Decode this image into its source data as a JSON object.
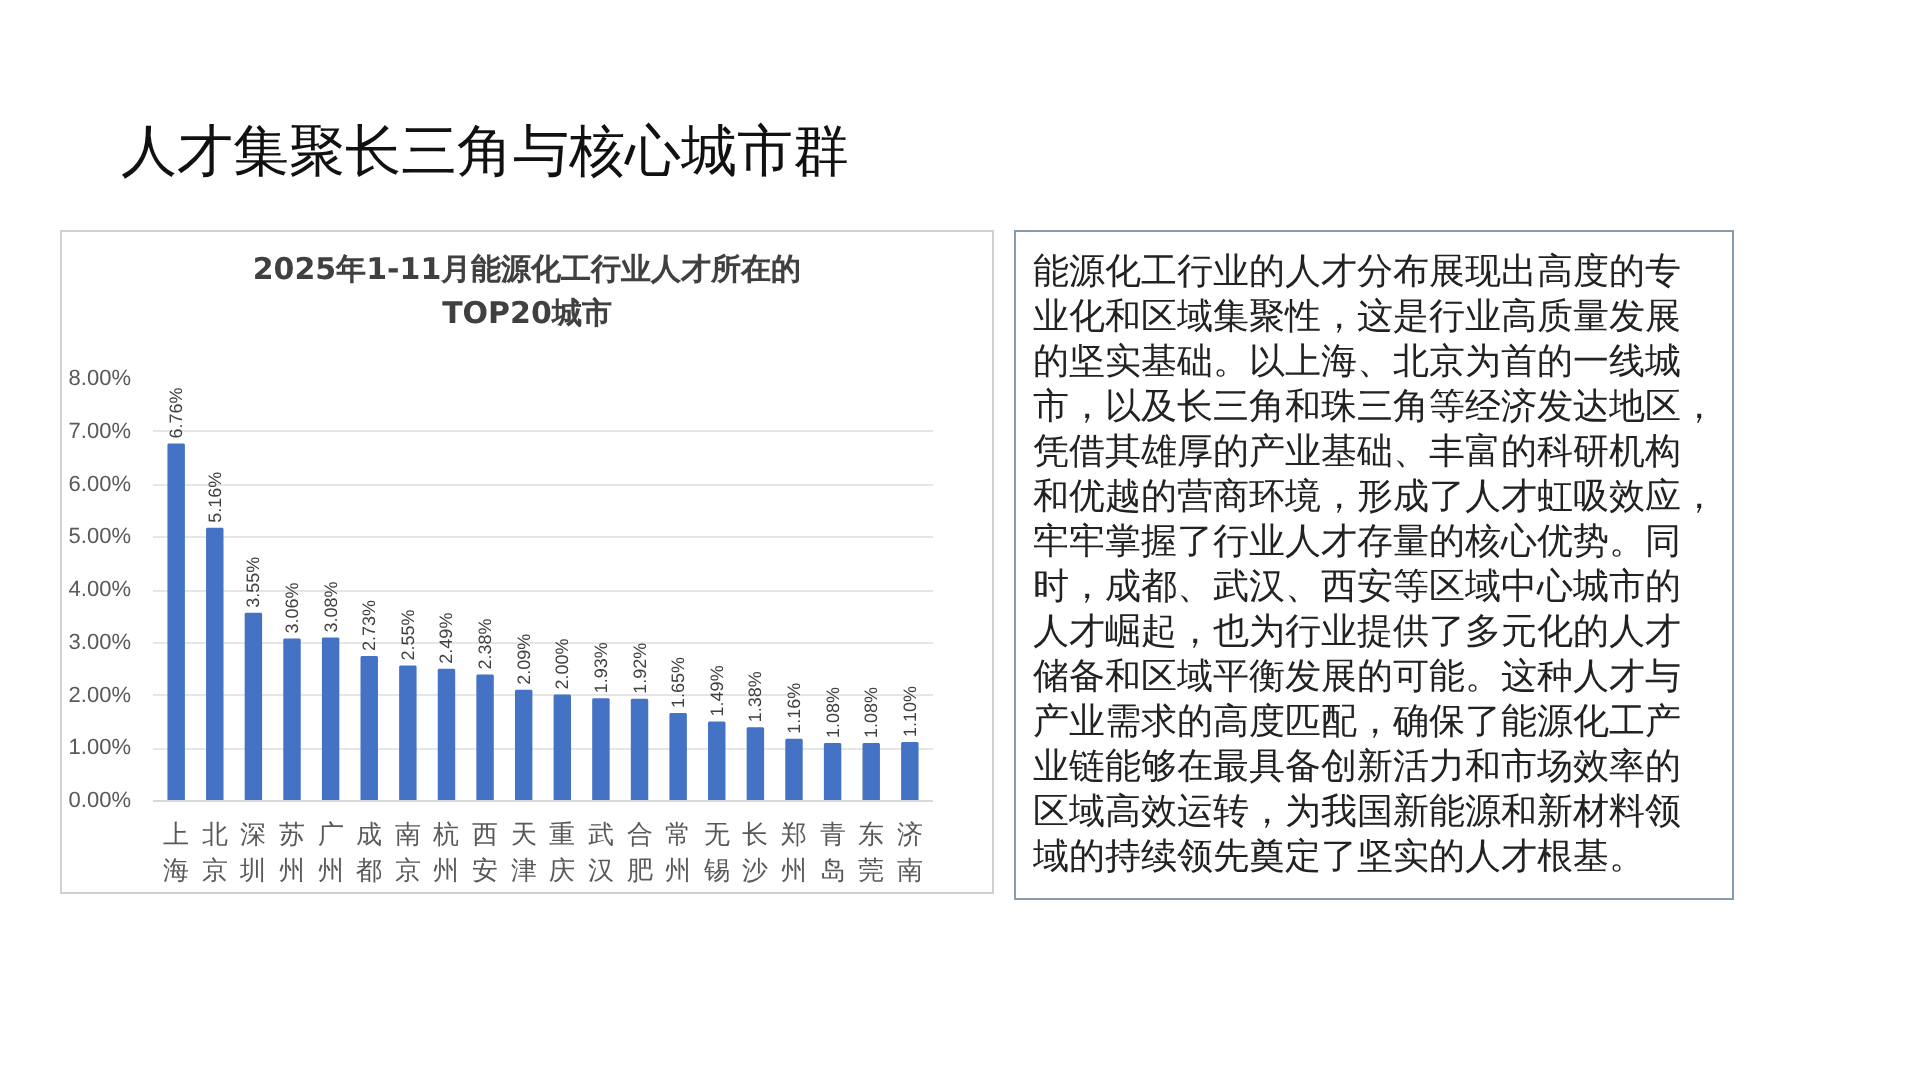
{
  "chart_data": {
    "type": "bar",
    "title": "人才集聚长三角与核心城市群",
    "subtitle": "2025年1-11月能源化工行业人才所在的\nTOP20城市",
    "categories": [
      "上海",
      "北京",
      "深圳",
      "苏州",
      "广州",
      "成都",
      "南京",
      "杭州",
      "西安",
      "天津",
      "重庆",
      "武汉",
      "合肥",
      "常州",
      "无锡",
      "长沙",
      "郑州",
      "青岛",
      "东莞",
      "济南"
    ],
    "values": [
      6.76,
      5.16,
      3.55,
      3.06,
      3.08,
      2.73,
      2.55,
      2.49,
      2.38,
      2.09,
      2.0,
      1.93,
      1.92,
      1.65,
      1.49,
      1.38,
      1.16,
      1.08,
      1.08,
      1.1
    ],
    "value_labels": [
      "6.76%",
      "5.16%",
      "3.55%",
      "3.06%",
      "3.08%",
      "2.73%",
      "2.55%",
      "2.49%",
      "2.38%",
      "2.09%",
      "2.00%",
      "1.93%",
      "1.92%",
      "1.65%",
      "1.49%",
      "1.38%",
      "1.16%",
      "1.08%",
      "1.08%",
      "1.10%"
    ],
    "color": "#4472c4",
    "ylim": [
      0,
      8
    ],
    "yticks": [
      {
        "value": 0,
        "label": "0.00%"
      },
      {
        "value": 1,
        "label": "1.00%"
      },
      {
        "value": 2,
        "label": "2.00%"
      },
      {
        "value": 3,
        "label": "3.00%"
      },
      {
        "value": 4,
        "label": "4.00%"
      },
      {
        "value": 5,
        "label": "5.00%"
      },
      {
        "value": 6,
        "label": "6.00%"
      },
      {
        "value": 7,
        "label": "7.00%"
      },
      {
        "value": 8,
        "label": "8.00%"
      }
    ],
    "grid": "y",
    "annotations": [
      "能源化工行业的人才分布展现出高度的专业化和区域集聚性，这是行业高质量发展的坚实基础。以上海、北京为首的一线城市，以及长三角和珠三角等经济发达地区，凭借其雄厚的产业基础、丰富的科研机构和优越的营商环境，形成了人才虹吸效应，牢牢掌握了行业人才存量的核心优势。同时，成都、武汉、西安等区域中心城市的人才崛起，也为行业提供了多元化的人才储备和区域平衡发展的可能。这种人才与产业需求的高度匹配，确保了能源化工产业链能够在最具备创新活力和市场效率的区域高效运转，为我国新能源和新材料领域的持续领先奠定了坚实的人才根基。"
    ]
  }
}
